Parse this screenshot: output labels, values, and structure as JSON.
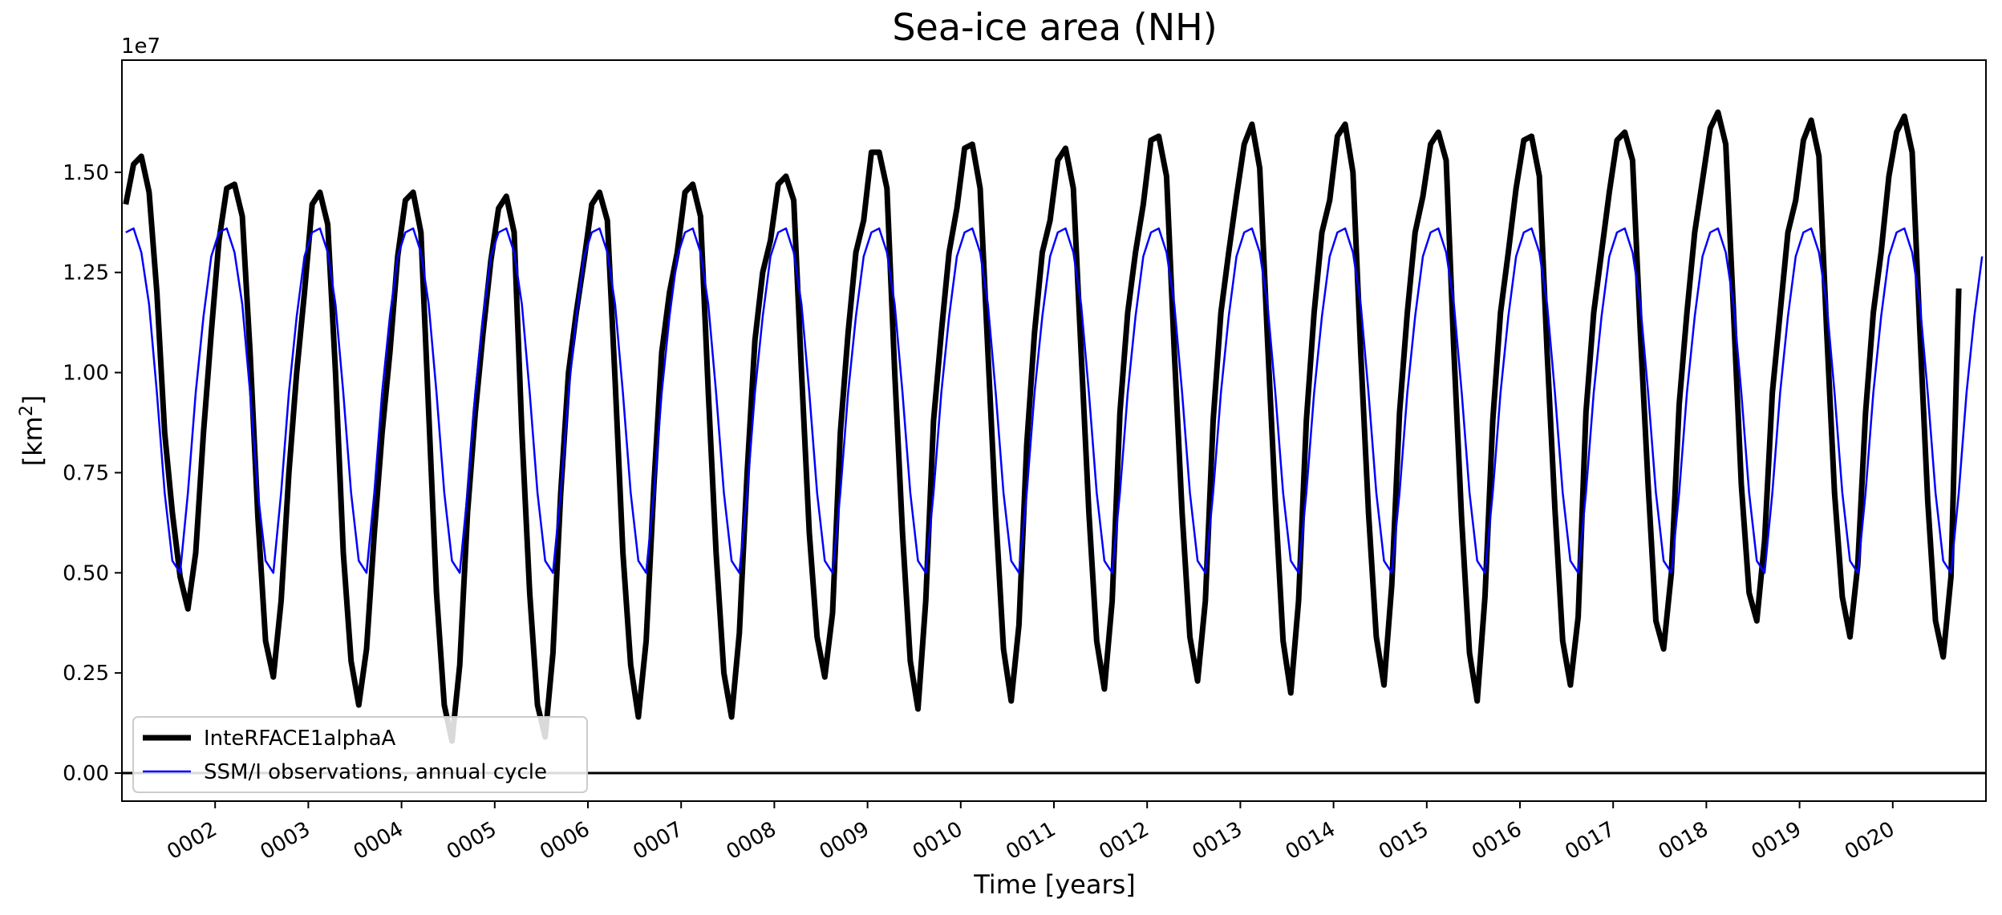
{
  "chart_data": {
    "type": "line",
    "title": "Sea-ice area (NH)",
    "xlabel": "Time [years]",
    "ylabel": "[km²]",
    "ylabel_base": "[km",
    "ylabel_sup": "2",
    "ylabel_end": "]",
    "offset_label": "1e7",
    "offset_base": "1e",
    "offset_exp": "7",
    "xlim": [
      1.0,
      21.0
    ],
    "ylim": [
      -0.07,
      1.78
    ],
    "x_ticks": [
      {
        "value": 2.0,
        "label": "0002"
      },
      {
        "value": 3.0,
        "label": "0003"
      },
      {
        "value": 4.0,
        "label": "0004"
      },
      {
        "value": 5.0,
        "label": "0005"
      },
      {
        "value": 6.0,
        "label": "0006"
      },
      {
        "value": 7.0,
        "label": "0007"
      },
      {
        "value": 8.0,
        "label": "0008"
      },
      {
        "value": 9.0,
        "label": "0009"
      },
      {
        "value": 10.0,
        "label": "0010"
      },
      {
        "value": 11.0,
        "label": "0011"
      },
      {
        "value": 12.0,
        "label": "0012"
      },
      {
        "value": 13.0,
        "label": "0013"
      },
      {
        "value": 14.0,
        "label": "0014"
      },
      {
        "value": 15.0,
        "label": "0015"
      },
      {
        "value": 16.0,
        "label": "0016"
      },
      {
        "value": 17.0,
        "label": "0017"
      },
      {
        "value": 18.0,
        "label": "0018"
      },
      {
        "value": 19.0,
        "label": "0019"
      },
      {
        "value": 20.0,
        "label": "0020"
      }
    ],
    "y_ticks": [
      {
        "value": 0.0,
        "label": "0.00"
      },
      {
        "value": 0.25,
        "label": "0.25"
      },
      {
        "value": 0.5,
        "label": "0.50"
      },
      {
        "value": 0.75,
        "label": "0.75"
      },
      {
        "value": 1.0,
        "label": "1.00"
      },
      {
        "value": 1.25,
        "label": "1.25"
      },
      {
        "value": 1.5,
        "label": "1.50"
      }
    ],
    "zero_line": true,
    "grid": false,
    "legend_position": "lower-left",
    "series": [
      {
        "name": "InteRFACE1alphaA",
        "color": "#000000",
        "x_start": 1.0417,
        "x_step": 0.0833333,
        "annual_cycles": [
          [
            1.42,
            1.52,
            1.54,
            1.45,
            1.2,
            0.85,
            0.65,
            0.49,
            0.41,
            0.55,
            0.85,
            1.1
          ],
          [
            1.33,
            1.46,
            1.47,
            1.39,
            1.05,
            0.64,
            0.33,
            0.24,
            0.43,
            0.75,
            1.0,
            1.2
          ],
          [
            1.42,
            1.45,
            1.37,
            1.0,
            0.55,
            0.28,
            0.17,
            0.31,
            0.6,
            0.85,
            1.05,
            1.29
          ],
          [
            1.43,
            1.45,
            1.35,
            0.9,
            0.45,
            0.17,
            0.08,
            0.27,
            0.65,
            0.9,
            1.1,
            1.28
          ],
          [
            1.41,
            1.44,
            1.35,
            0.85,
            0.45,
            0.17,
            0.09,
            0.3,
            0.7,
            1.0,
            1.15,
            1.28
          ],
          [
            1.42,
            1.45,
            1.38,
            0.98,
            0.55,
            0.27,
            0.14,
            0.33,
            0.72,
            1.05,
            1.2,
            1.3
          ],
          [
            1.45,
            1.47,
            1.39,
            0.95,
            0.55,
            0.25,
            0.14,
            0.35,
            0.75,
            1.08,
            1.25,
            1.33
          ],
          [
            1.47,
            1.49,
            1.43,
            1.0,
            0.6,
            0.34,
            0.24,
            0.4,
            0.85,
            1.1,
            1.3,
            1.38
          ],
          [
            1.55,
            1.55,
            1.46,
            1.0,
            0.6,
            0.28,
            0.16,
            0.43,
            0.88,
            1.1,
            1.3,
            1.41
          ],
          [
            1.56,
            1.57,
            1.46,
            1.05,
            0.65,
            0.31,
            0.18,
            0.37,
            0.82,
            1.1,
            1.3,
            1.38
          ],
          [
            1.53,
            1.56,
            1.46,
            1.05,
            0.65,
            0.33,
            0.21,
            0.43,
            0.9,
            1.15,
            1.3,
            1.42
          ],
          [
            1.58,
            1.59,
            1.49,
            1.05,
            0.65,
            0.34,
            0.23,
            0.43,
            0.88,
            1.15,
            1.3,
            1.44
          ],
          [
            1.57,
            1.62,
            1.51,
            1.08,
            0.68,
            0.33,
            0.2,
            0.43,
            0.88,
            1.15,
            1.35,
            1.43
          ],
          [
            1.59,
            1.62,
            1.5,
            1.05,
            0.65,
            0.34,
            0.22,
            0.47,
            0.9,
            1.15,
            1.35,
            1.44
          ],
          [
            1.57,
            1.6,
            1.53,
            1.05,
            0.63,
            0.3,
            0.18,
            0.44,
            0.88,
            1.15,
            1.3,
            1.46
          ],
          [
            1.58,
            1.59,
            1.49,
            1.05,
            0.66,
            0.33,
            0.22,
            0.39,
            0.9,
            1.15,
            1.3,
            1.45
          ],
          [
            1.58,
            1.6,
            1.53,
            1.1,
            0.72,
            0.38,
            0.31,
            0.5,
            0.92,
            1.15,
            1.35,
            1.48
          ],
          [
            1.61,
            1.65,
            1.57,
            1.15,
            0.72,
            0.45,
            0.38,
            0.58,
            0.95,
            1.15,
            1.35,
            1.43
          ],
          [
            1.58,
            1.63,
            1.54,
            1.1,
            0.7,
            0.44,
            0.34,
            0.52,
            0.9,
            1.15,
            1.3,
            1.49
          ],
          [
            1.6,
            1.64,
            1.55,
            1.1,
            0.68,
            0.38,
            0.29,
            0.49,
            1.21
          ]
        ]
      },
      {
        "name": "SSM/I observations, annual cycle",
        "color": "#0000ff",
        "x_start": 1.0417,
        "x_step": 0.0833333,
        "annual_cycle": [
          1.35,
          1.36,
          1.3,
          1.17,
          0.95,
          0.7,
          0.53,
          0.5,
          0.7,
          0.95,
          1.14,
          1.29
        ],
        "years": 20
      }
    ]
  }
}
